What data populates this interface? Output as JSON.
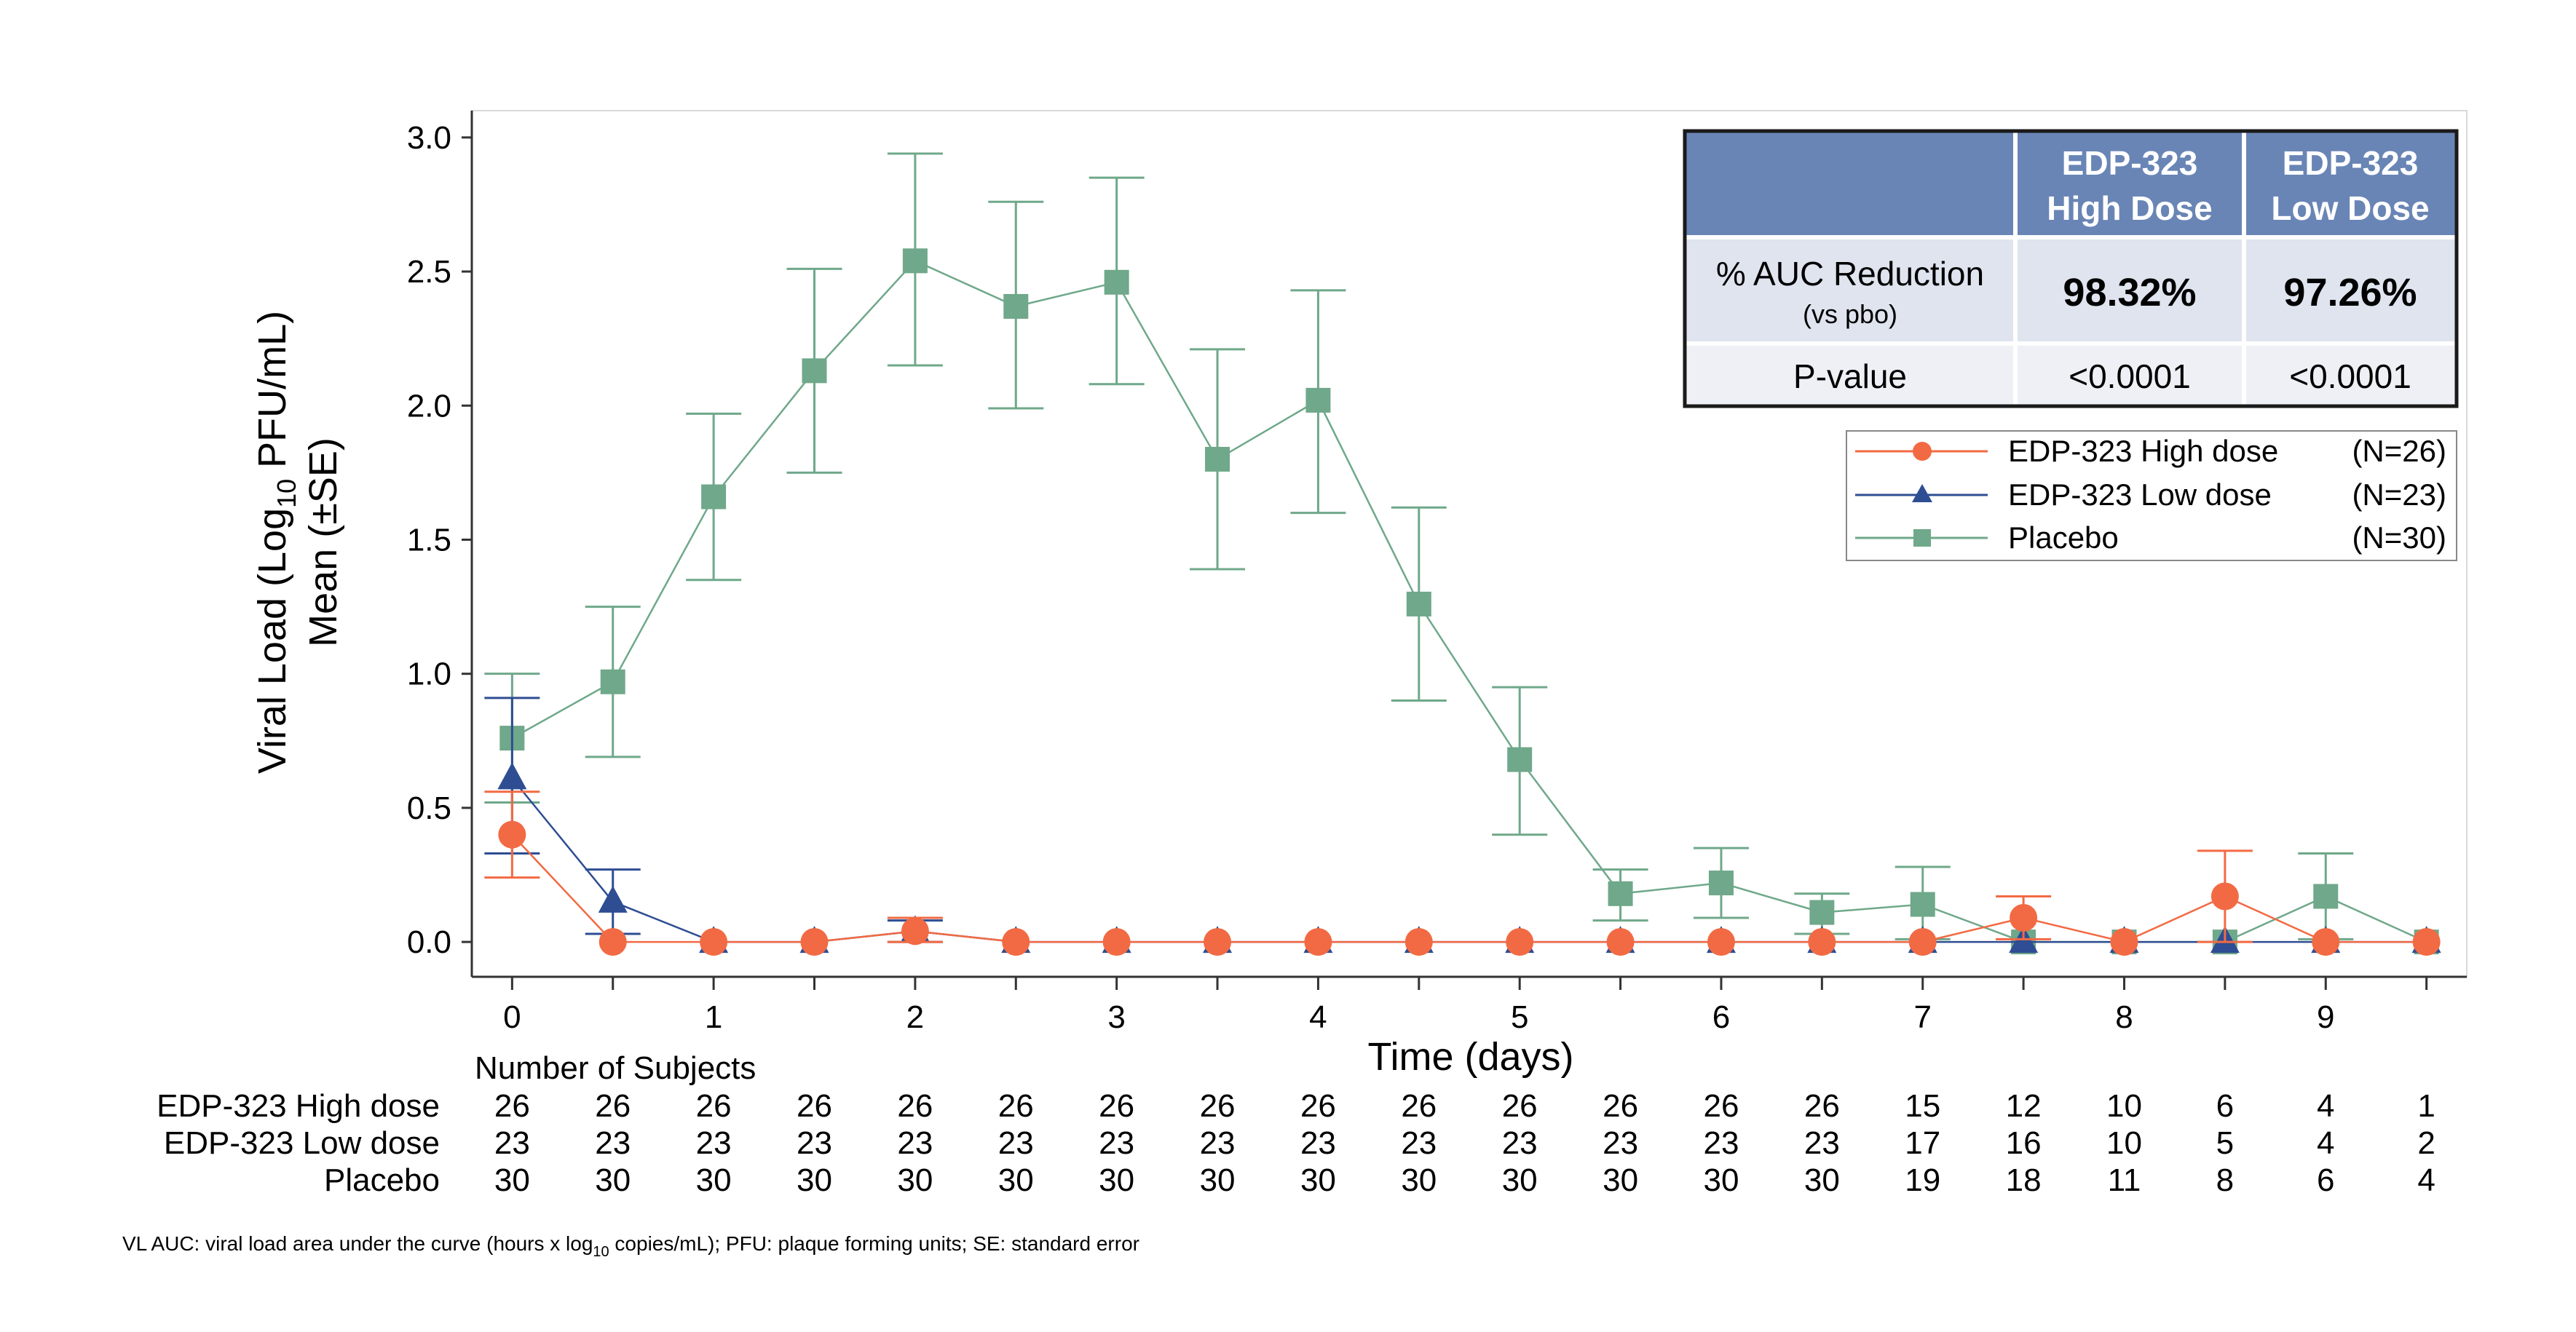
{
  "colors": {
    "high": "#f26a43",
    "low": "#2e4d92",
    "placebo": "#6fa88a",
    "table_header": "#6985b5",
    "table_row_light": "#dfe4ef",
    "table_row_lighter": "#eef0f5"
  },
  "chart_data": {
    "type": "line",
    "ylabel_line1": "Viral Load (Log",
    "ylabel_sub": "10",
    "ylabel_line1_end": " PFU/mL)",
    "ylabel_line2": "Mean (±SE)",
    "xlabel": "Time (days)",
    "x_ticks": [
      0,
      1,
      2,
      3,
      4,
      5,
      6,
      7,
      8,
      9
    ],
    "y_ticks": [
      "0.0",
      "0.5",
      "1.0",
      "1.5",
      "2.0",
      "2.5",
      "3.0"
    ],
    "xlim": [
      -0.2,
      9.7
    ],
    "ylim": [
      -0.13,
      3.1
    ],
    "x": [
      0,
      0.5,
      1,
      1.5,
      2,
      2.5,
      3,
      3.5,
      4,
      4.5,
      5,
      5.5,
      6,
      6.5,
      7,
      7.5,
      8,
      8.5,
      9,
      9.5
    ],
    "series": [
      {
        "name": "Placebo",
        "key": "placebo",
        "marker": "square",
        "values": [
          0.76,
          0.97,
          1.66,
          2.13,
          2.54,
          2.37,
          2.46,
          1.8,
          2.02,
          1.26,
          0.68,
          0.18,
          0.22,
          0.11,
          0.14,
          0.0,
          0.0,
          0.0,
          0.17,
          0.0
        ],
        "se_low": [
          0.52,
          0.69,
          1.35,
          1.75,
          2.15,
          1.99,
          2.08,
          1.39,
          1.6,
          0.9,
          0.4,
          0.08,
          0.09,
          0.03,
          0.01,
          0.0,
          0.0,
          0.0,
          0.01,
          0.0
        ],
        "se_high": [
          1.0,
          1.25,
          1.97,
          2.51,
          2.94,
          2.76,
          2.85,
          2.21,
          2.43,
          1.62,
          0.95,
          0.27,
          0.35,
          0.18,
          0.28,
          0.0,
          0.0,
          0.0,
          0.33,
          0.0
        ]
      },
      {
        "name": "EDP-323 Low dose",
        "key": "low",
        "marker": "triangle",
        "values": [
          0.61,
          0.15,
          0.0,
          0.0,
          0.04,
          0.0,
          0.0,
          0.0,
          0.0,
          0.0,
          0.0,
          0.0,
          0.0,
          0.0,
          0.0,
          0.0,
          0.0,
          0.0,
          0.0,
          0.0
        ],
        "se_low": [
          0.33,
          0.03,
          0.0,
          0.0,
          0.0,
          0.0,
          0.0,
          0.0,
          0.0,
          0.0,
          0.0,
          0.0,
          0.0,
          0.0,
          0.0,
          0.0,
          0.0,
          0.0,
          0.0,
          0.0
        ],
        "se_high": [
          0.91,
          0.27,
          0.0,
          0.0,
          0.08,
          0.0,
          0.0,
          0.0,
          0.0,
          0.0,
          0.0,
          0.0,
          0.0,
          0.0,
          0.0,
          0.0,
          0.0,
          0.0,
          0.0,
          0.0
        ]
      },
      {
        "name": "EDP-323 High dose",
        "key": "high",
        "marker": "circle",
        "values": [
          0.4,
          0.0,
          0.0,
          0.0,
          0.04,
          0.0,
          0.0,
          0.0,
          0.0,
          0.0,
          0.0,
          0.0,
          0.0,
          0.0,
          0.0,
          0.09,
          0.0,
          0.17,
          0.0,
          0.0
        ],
        "se_low": [
          0.24,
          0.0,
          0.0,
          0.0,
          0.0,
          0.0,
          0.0,
          0.0,
          0.0,
          0.0,
          0.0,
          0.0,
          0.0,
          0.0,
          0.0,
          0.01,
          0.0,
          0.0,
          0.0,
          0.0
        ],
        "se_high": [
          0.56,
          0.0,
          0.0,
          0.0,
          0.09,
          0.0,
          0.0,
          0.0,
          0.0,
          0.0,
          0.0,
          0.0,
          0.0,
          0.0,
          0.0,
          0.17,
          0.0,
          0.34,
          0.0,
          0.0
        ]
      }
    ],
    "legend": [
      {
        "key": "high",
        "marker": "circle",
        "label": "EDP-323 High dose",
        "n": "(N=26)"
      },
      {
        "key": "low",
        "marker": "triangle",
        "label": "EDP-323 Low dose",
        "n": "(N=23)"
      },
      {
        "key": "placebo",
        "marker": "square",
        "label": "Placebo",
        "n": "(N=30)"
      }
    ],
    "legend_position": "right, below table",
    "summary_table": {
      "col1_line1": "EDP-323",
      "col1_line2": "High Dose",
      "col2_line1": "EDP-323",
      "col2_line2": "Low Dose",
      "row1_label": "% AUC Reduction",
      "row1_sublabel": "(vs pbo)",
      "row1_high": "98.32%",
      "row1_low": "97.26%",
      "row2_label": "P-value",
      "row2_high": "<0.0001",
      "row2_low": "<0.0001"
    },
    "subjects": {
      "title": "Number of Subjects",
      "rows": [
        {
          "label": "EDP-323 High dose",
          "counts": [
            "26",
            "26",
            "26",
            "26",
            "26",
            "26",
            "26",
            "26",
            "26",
            "26",
            "26",
            "26",
            "26",
            "26",
            "15",
            "12",
            "10",
            "6",
            "4",
            "1"
          ]
        },
        {
          "label": "EDP-323 Low dose",
          "counts": [
            "23",
            "23",
            "23",
            "23",
            "23",
            "23",
            "23",
            "23",
            "23",
            "23",
            "23",
            "23",
            "23",
            "23",
            "17",
            "16",
            "10",
            "5",
            "4",
            "2"
          ]
        },
        {
          "label": "Placebo",
          "counts": [
            "30",
            "30",
            "30",
            "30",
            "30",
            "30",
            "30",
            "30",
            "30",
            "30",
            "30",
            "30",
            "30",
            "30",
            "19",
            "18",
            "11",
            "8",
            "6",
            "4"
          ]
        }
      ]
    }
  },
  "footnote": {
    "part1": "VL AUC: viral load area under the curve (hours x log",
    "sub": "10",
    "part2": " copies/mL); PFU: plaque forming units; SE: standard error"
  }
}
